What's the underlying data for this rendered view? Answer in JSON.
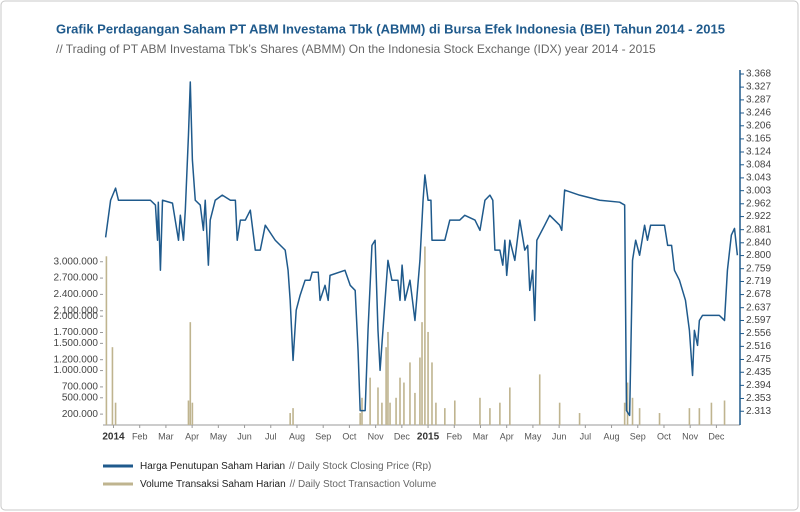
{
  "chart_data": {
    "type": "line",
    "title": "Grafik Perdagangan Saham PT ABM Investama Tbk (ABMM) di Bursa Efek Indonesia (BEI) Tahun 2014 - 2015",
    "subtitle": "// Trading of PT ABM Investama Tbk’s Shares (ABMM) On the Indonesia Stock Exchange (IDX) year 2014 - 2015",
    "xlim": [
      -0.4,
      23.9
    ],
    "xticks": [
      {
        "value": 0,
        "label": "2014"
      },
      {
        "value": 1,
        "label": "Feb"
      },
      {
        "value": 2,
        "label": "Mar"
      },
      {
        "value": 3,
        "label": "Apr"
      },
      {
        "value": 4,
        "label": "May"
      },
      {
        "value": 5,
        "label": "Jun"
      },
      {
        "value": 6,
        "label": "Jul"
      },
      {
        "value": 7,
        "label": "Aug"
      },
      {
        "value": 8,
        "label": "Sep"
      },
      {
        "value": 9,
        "label": "Oct"
      },
      {
        "value": 10,
        "label": "Nov"
      },
      {
        "value": 11,
        "label": "Dec"
      },
      {
        "value": 12,
        "label": "2015"
      },
      {
        "value": 13,
        "label": "Feb"
      },
      {
        "value": 14,
        "label": "Mar"
      },
      {
        "value": 15,
        "label": "Apr"
      },
      {
        "value": 16,
        "label": "May"
      },
      {
        "value": 17,
        "label": "Jun"
      },
      {
        "value": 18,
        "label": "Jul"
      },
      {
        "value": 19,
        "label": "Aug"
      },
      {
        "value": 20,
        "label": "Sep"
      },
      {
        "value": 21,
        "label": "Oct"
      },
      {
        "value": 22,
        "label": "Nov"
      },
      {
        "value": 23,
        "label": "Dec"
      }
    ],
    "ylim": [
      0,
      6450000
    ],
    "yticks": [
      {
        "value": 3000000,
        "label": "3.000.000"
      },
      {
        "value": 2700000,
        "label": "2.700.000"
      },
      {
        "value": 2400000,
        "label": "2.400.000"
      },
      {
        "value": 2100000,
        "label": "2.100.000"
      },
      {
        "value": 2000000,
        "label": "2.000.000"
      },
      {
        "value": 1700000,
        "label": "1.700.000"
      },
      {
        "value": 1500000,
        "label": "1.500.000"
      },
      {
        "value": 1200000,
        "label": "1.200.000"
      },
      {
        "value": 1000000,
        "label": "1.000.000"
      },
      {
        "value": 700000,
        "label": "700.000"
      },
      {
        "value": 500000,
        "label": "500.000"
      },
      {
        "value": 200000,
        "label": "200.000"
      }
    ],
    "y2lim": [
      2270,
      3368
    ],
    "y2ticks": [
      {
        "value": 3368,
        "label": "3.368"
      },
      {
        "value": 3327,
        "label": "3.327"
      },
      {
        "value": 3287,
        "label": "3.287"
      },
      {
        "value": 3246,
        "label": "3.246"
      },
      {
        "value": 3206,
        "label": "3.206"
      },
      {
        "value": 3165,
        "label": "3.165"
      },
      {
        "value": 3124,
        "label": "3.124"
      },
      {
        "value": 3084,
        "label": "3.084"
      },
      {
        "value": 3043,
        "label": "3.043"
      },
      {
        "value": 3003,
        "label": "3.003"
      },
      {
        "value": 2962,
        "label": "2.962"
      },
      {
        "value": 2922,
        "label": "2.922"
      },
      {
        "value": 2881,
        "label": "2.881"
      },
      {
        "value": 2840,
        "label": "2.840"
      },
      {
        "value": 2800,
        "label": "2.800"
      },
      {
        "value": 2759,
        "label": "2.759"
      },
      {
        "value": 2719,
        "label": "2.719"
      },
      {
        "value": 2678,
        "label": "2.678"
      },
      {
        "value": 2637,
        "label": "2.637"
      },
      {
        "value": 2597,
        "label": "2.597"
      },
      {
        "value": 2556,
        "label": "2.556"
      },
      {
        "value": 2516,
        "label": "2.516"
      },
      {
        "value": 2475,
        "label": "2.475"
      },
      {
        "value": 2435,
        "label": "2.435"
      },
      {
        "value": 2394,
        "label": "2.394"
      },
      {
        "value": 2353,
        "label": "2.353"
      },
      {
        "value": 2313,
        "label": "2.313"
      }
    ],
    "series": [
      {
        "name": "Volume Transaksi Saham Harian",
        "name_en": "// Daily Stoct Transaction Volume",
        "type": "bar",
        "color": "#bfb48f",
        "x": [
          -0.27,
          -0.04,
          0.08,
          2.86,
          2.93,
          3.01,
          6.74,
          6.85,
          9.41,
          9.48,
          9.79,
          10.09,
          10.24,
          10.4,
          10.47,
          10.55,
          10.78,
          10.93,
          11.08,
          11.31,
          11.5,
          11.69,
          11.77,
          11.88,
          12.0,
          12.15,
          12.3,
          12.64,
          13.02,
          13.98,
          14.36,
          14.74,
          15.12,
          16.26,
          17.02,
          17.78,
          19.5,
          19.61,
          19.8,
          20.07,
          20.83,
          21.97,
          22.35,
          22.81,
          23.31
        ],
        "values": [
          3100000,
          1430000,
          410000,
          450000,
          1890000,
          410000,
          220000,
          310000,
          220000,
          500000,
          870000,
          690000,
          410000,
          1430000,
          1710000,
          410000,
          500000,
          870000,
          780000,
          1150000,
          590000,
          1240000,
          1890000,
          3280000,
          1710000,
          1150000,
          410000,
          310000,
          450000,
          500000,
          310000,
          410000,
          690000,
          930000,
          410000,
          220000,
          410000,
          780000,
          500000,
          310000,
          220000,
          310000,
          310000,
          410000,
          450000
        ]
      },
      {
        "name": "Harga Penutupan Saham Harian",
        "name_en": "// Daily Stock Closing Price (Rp)",
        "type": "line",
        "axis": "y2",
        "color": "#1f5a8c",
        "x": [
          -0.3,
          -0.11,
          0.08,
          0.19,
          0.46,
          1.41,
          1.6,
          1.68,
          1.71,
          1.79,
          1.87,
          2.25,
          2.48,
          2.55,
          2.67,
          2.74,
          2.86,
          2.93,
          3.01,
          3.12,
          3.31,
          3.43,
          3.5,
          3.62,
          3.69,
          3.88,
          4.15,
          4.46,
          4.65,
          4.72,
          4.84,
          5.03,
          5.22,
          5.41,
          5.6,
          5.79,
          6.17,
          6.55,
          6.66,
          6.74,
          6.85,
          6.97,
          7.12,
          7.31,
          7.5,
          7.58,
          7.81,
          7.88,
          8.07,
          8.19,
          8.26,
          8.83,
          9.03,
          9.22,
          9.33,
          9.41,
          9.6,
          9.71,
          9.86,
          9.98,
          10.09,
          10.17,
          10.36,
          10.47,
          10.62,
          10.85,
          10.93,
          11.01,
          11.12,
          11.31,
          11.5,
          11.69,
          11.81,
          11.88,
          12.0,
          12.11,
          12.15,
          12.64,
          12.83,
          13.21,
          13.4,
          13.79,
          13.98,
          14.17,
          14.36,
          14.47,
          14.55,
          14.74,
          14.85,
          14.93,
          15.0,
          15.12,
          15.31,
          15.5,
          15.69,
          15.8,
          15.88,
          15.99,
          16.07,
          16.15,
          16.45,
          16.64,
          17.02,
          17.1,
          17.21,
          17.78,
          18.55,
          19.31,
          19.5,
          19.57,
          19.69,
          19.8,
          19.92,
          20.07,
          20.26,
          20.37,
          20.49,
          21.02,
          21.14,
          21.29,
          21.4,
          21.59,
          21.82,
          21.97,
          22.09,
          22.16,
          22.28,
          22.35,
          22.47,
          23.11,
          23.31,
          23.42,
          23.57,
          23.69,
          23.8
        ],
        "values": [
          2857,
          2973,
          3011,
          2973,
          2973,
          2973,
          2958,
          2848,
          2967,
          2754,
          2973,
          2964,
          2848,
          2926,
          2848,
          2942,
          3177,
          3343,
          3099,
          2973,
          2958,
          2879,
          2973,
          2770,
          2911,
          2973,
          2989,
          2973,
          2973,
          2848,
          2911,
          2911,
          2942,
          2817,
          2817,
          2895,
          2848,
          2817,
          2754,
          2660,
          2472,
          2629,
          2676,
          2723,
          2723,
          2748,
          2748,
          2660,
          2707,
          2660,
          2738,
          2754,
          2707,
          2691,
          2503,
          2315,
          2315,
          2566,
          2832,
          2848,
          2566,
          2441,
          2660,
          2785,
          2723,
          2723,
          2660,
          2770,
          2660,
          2723,
          2597,
          2785,
          2973,
          3052,
          2973,
          2973,
          2848,
          2848,
          2911,
          2911,
          2926,
          2911,
          2879,
          2973,
          2989,
          2973,
          2817,
          2817,
          2770,
          2848,
          2738,
          2848,
          2785,
          2911,
          2817,
          2832,
          2691,
          2754,
          2597,
          2848,
          2895,
          2926,
          2895,
          2879,
          3005,
          2989,
          2973,
          2967,
          2958,
          2315,
          2300,
          2785,
          2848,
          2801,
          2895,
          2848,
          2895,
          2895,
          2832,
          2832,
          2754,
          2723,
          2660,
          2566,
          2425,
          2566,
          2519,
          2597,
          2613,
          2613,
          2597,
          2754,
          2864,
          2885,
          2801
        ]
      }
    ]
  }
}
